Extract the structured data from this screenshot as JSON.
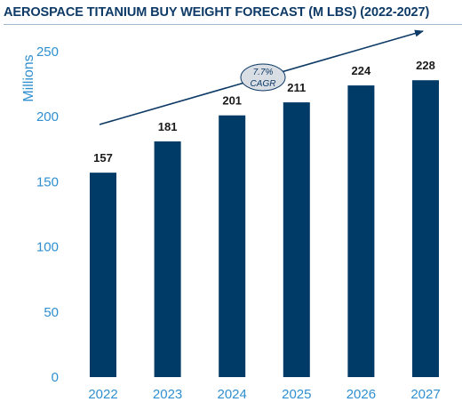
{
  "title": "AEROSPACE TITANIUM BUY WEIGHT FORECAST (M LBS) (2022-2027)",
  "chart_data": {
    "type": "bar",
    "title": "AEROSPACE TITANIUM BUY WEIGHT FORECAST (M LBS) (2022-2027)",
    "categories": [
      "2022",
      "2023",
      "2024",
      "2025",
      "2026",
      "2027"
    ],
    "values": [
      157,
      181,
      201,
      211,
      224,
      228
    ],
    "xlabel": "",
    "ylabel": "Millions",
    "ylim": [
      0,
      250
    ],
    "yticks": [
      0,
      50,
      100,
      150,
      200,
      250
    ],
    "grid": false,
    "legend": "none",
    "bar_color": "#003a66",
    "axis_label_color": "#2f8fd0",
    "annotation": {
      "line1": "7.7%",
      "line2": "CAGR",
      "arrow_color": "#0d3a66",
      "badge_fill": "#d9dee4"
    }
  }
}
